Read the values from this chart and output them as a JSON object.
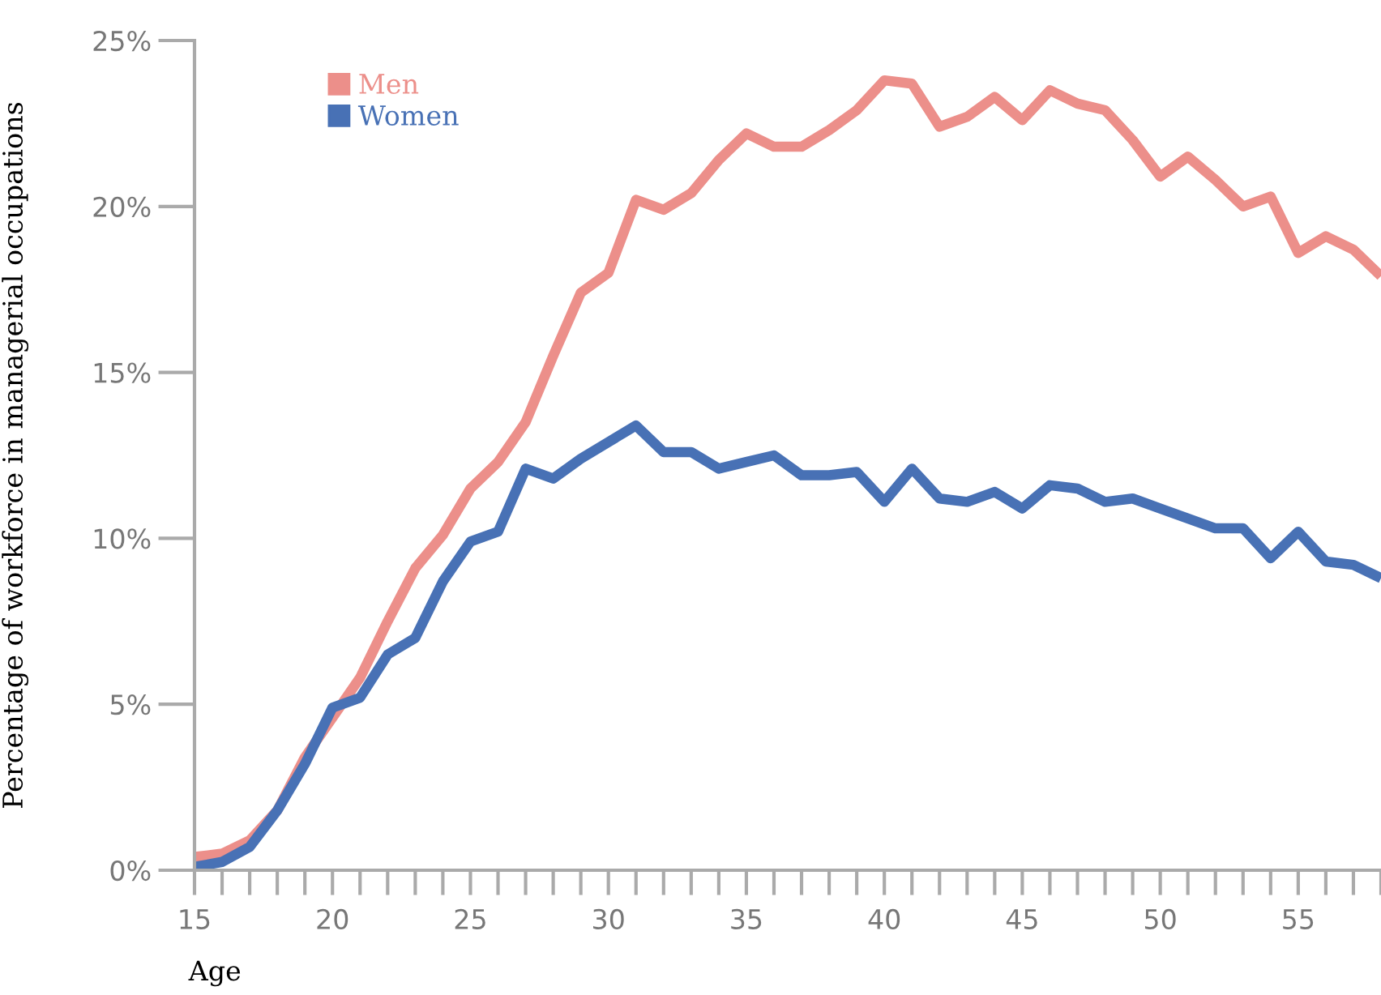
{
  "chart_data": {
    "type": "line",
    "xlabel": "Age",
    "ylabel": "Percentage of workforce in managerial occupations",
    "x": [
      15,
      16,
      17,
      18,
      19,
      20,
      21,
      22,
      23,
      24,
      25,
      26,
      27,
      28,
      29,
      30,
      31,
      32,
      33,
      34,
      35,
      36,
      37,
      38,
      39,
      40,
      41,
      42,
      43,
      44,
      45,
      46,
      47,
      48,
      49,
      50,
      51,
      52,
      53,
      54,
      55,
      56,
      57,
      58
    ],
    "series": [
      {
        "name": "Men",
        "color": "#ec8f8a",
        "values": [
          0.4,
          0.5,
          0.9,
          1.8,
          3.4,
          4.6,
          5.8,
          7.5,
          9.1,
          10.1,
          11.5,
          12.3,
          13.5,
          15.5,
          17.4,
          18.0,
          20.2,
          19.9,
          20.4,
          21.4,
          22.2,
          21.8,
          21.8,
          22.3,
          22.9,
          23.8,
          23.7,
          22.4,
          22.7,
          23.3,
          22.6,
          23.5,
          23.1,
          22.9,
          22.0,
          20.9,
          21.5,
          20.8,
          20.0,
          20.3,
          18.6,
          19.1,
          18.7,
          17.9
        ]
      },
      {
        "name": "Women",
        "color": "#4871b5",
        "values": [
          0.1,
          0.25,
          0.7,
          1.8,
          3.2,
          4.9,
          5.2,
          6.5,
          7.0,
          8.7,
          9.9,
          10.2,
          12.1,
          11.8,
          12.4,
          12.9,
          13.4,
          12.6,
          12.6,
          12.1,
          12.3,
          12.5,
          11.9,
          11.9,
          12.0,
          11.1,
          12.1,
          11.2,
          11.1,
          11.4,
          10.9,
          11.6,
          11.5,
          11.1,
          11.2,
          10.9,
          10.6,
          10.3,
          10.3,
          9.4,
          10.2,
          9.3,
          9.2,
          8.8
        ]
      }
    ],
    "xlim": [
      15,
      58
    ],
    "ylim": [
      0,
      25
    ],
    "xticks": [
      15,
      {
        "value": 16,
        "label": null
      },
      {
        "value": 17,
        "label": null
      },
      {
        "value": 18,
        "label": null
      },
      {
        "value": 19,
        "label": null
      },
      20,
      {
        "value": 21,
        "label": null
      },
      {
        "value": 22,
        "label": null
      },
      {
        "value": 23,
        "label": null
      },
      {
        "value": 24,
        "label": null
      },
      25,
      {
        "value": 26,
        "label": null
      },
      {
        "value": 27,
        "label": null
      },
      {
        "value": 28,
        "label": null
      },
      {
        "value": 29,
        "label": null
      },
      30,
      {
        "value": 31,
        "label": null
      },
      {
        "value": 32,
        "label": null
      },
      {
        "value": 33,
        "label": null
      },
      {
        "value": 34,
        "label": null
      },
      35,
      {
        "value": 36,
        "label": null
      },
      {
        "value": 37,
        "label": null
      },
      {
        "value": 38,
        "label": null
      },
      {
        "value": 39,
        "label": null
      },
      40,
      {
        "value": 41,
        "label": null
      },
      {
        "value": 42,
        "label": null
      },
      {
        "value": 43,
        "label": null
      },
      {
        "value": 44,
        "label": null
      },
      45,
      {
        "value": 46,
        "label": null
      },
      {
        "value": 47,
        "label": null
      },
      {
        "value": 48,
        "label": null
      },
      {
        "value": 49,
        "label": null
      },
      50,
      {
        "value": 51,
        "label": null
      },
      {
        "value": 52,
        "label": null
      },
      {
        "value": 53,
        "label": null
      },
      {
        "value": 54,
        "label": null
      },
      55,
      {
        "value": 56,
        "label": null
      },
      {
        "value": 57,
        "label": null
      },
      {
        "value": 58,
        "label": null
      }
    ],
    "yticks": [
      {
        "value": 0,
        "label": "0%"
      },
      {
        "value": 5,
        "label": "5%"
      },
      {
        "value": 10,
        "label": "10%"
      },
      {
        "value": 15,
        "label": "15%"
      },
      {
        "value": 20,
        "label": "20%"
      },
      {
        "value": 25,
        "label": "25%"
      }
    ],
    "grid": false,
    "legend": "top left",
    "marker": "none",
    "line_style": "solid"
  }
}
